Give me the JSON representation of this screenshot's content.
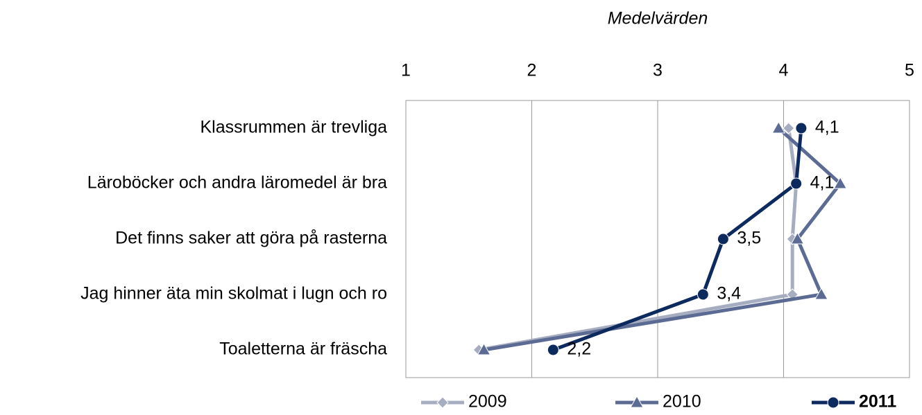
{
  "chart_data": {
    "type": "line",
    "orientation": "horizontal",
    "title": "Medelvärden",
    "categories": [
      "Klassrummen är trevliga",
      "Läroböcker och andra läromedel är bra",
      "Det finns saker att göra på rasterna",
      "Jag hinner äta min skolmat i lugn och ro",
      "Toaletterna är fräscha"
    ],
    "series": [
      {
        "name": "2009",
        "color": "#a6adc0",
        "marker": "diamond",
        "values": [
          4.04,
          4.1,
          4.07,
          4.07,
          1.58
        ]
      },
      {
        "name": "2010",
        "color": "#5b6b93",
        "marker": "triangle",
        "values": [
          3.96,
          4.45,
          4.11,
          4.3,
          1.62
        ]
      },
      {
        "name": "2011",
        "color": "#0d2a5f",
        "marker": "circle",
        "bold": true,
        "values": [
          4.14,
          4.1,
          3.52,
          3.36,
          2.17
        ],
        "value_labels": [
          "4,1",
          "4,1",
          "3,5",
          "3,4",
          "2,2"
        ]
      }
    ],
    "xlim": [
      1,
      5
    ],
    "xticks": [
      1,
      2,
      3,
      4,
      5
    ],
    "grid": true,
    "legend": "bottom"
  }
}
